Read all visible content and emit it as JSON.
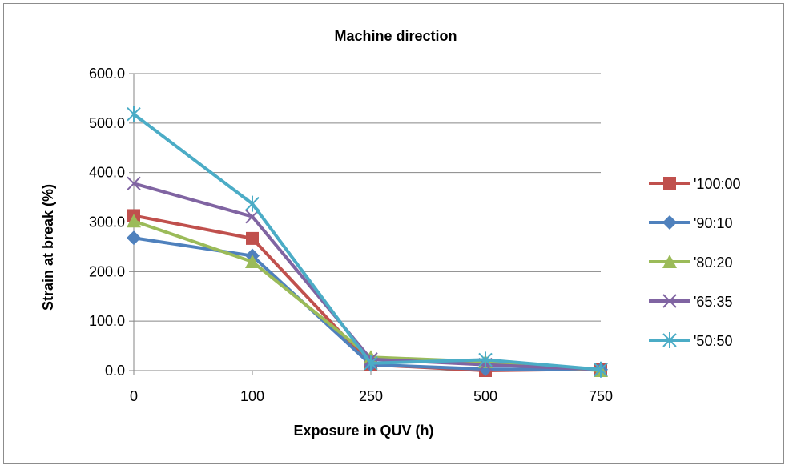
{
  "chart_data": {
    "type": "line",
    "title": "Machine direction",
    "xlabel": "Exposure in QUV (h)",
    "ylabel": "Strain at break (%)",
    "categories": [
      "0",
      "100",
      "250",
      "500",
      "750"
    ],
    "ylim": [
      0,
      600
    ],
    "yticks": [
      "0.0",
      "100.0",
      "200.0",
      "300.0",
      "400.0",
      "500.0",
      "600.0"
    ],
    "grid": true,
    "legend_position": "right",
    "series": [
      {
        "name": "'100:00",
        "color": "#c0504d",
        "marker": "square",
        "values": [
          313,
          267,
          12,
          0,
          3
        ]
      },
      {
        "name": "'90:10",
        "color": "#4f81bd",
        "marker": "diamond",
        "values": [
          268,
          232,
          12,
          3,
          2
        ]
      },
      {
        "name": "'80:20",
        "color": "#9bbb59",
        "marker": "triangle",
        "values": [
          302,
          220,
          27,
          18,
          0
        ]
      },
      {
        "name": "'65:35",
        "color": "#8064a2",
        "marker": "x",
        "values": [
          378,
          311,
          23,
          12,
          2
        ]
      },
      {
        "name": "'50:50",
        "color": "#4bacc6",
        "marker": "star",
        "values": [
          518,
          337,
          15,
          22,
          2
        ]
      }
    ]
  }
}
